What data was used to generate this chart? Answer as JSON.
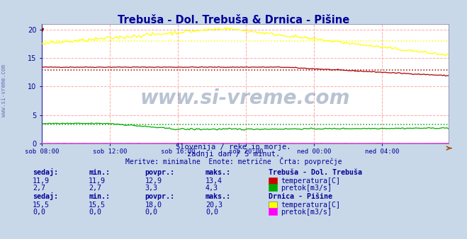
{
  "title": "Trebuša - Dol. Trebuša & Drnica - Pišine",
  "title_color": "#000099",
  "bg_color": "#c8d8e8",
  "plot_bg_color": "#ffffff",
  "grid_color": "#ffaaaa",
  "grid_linestyle": "--",
  "xlabel_ticks": [
    "sob 08:00",
    "sob 12:00",
    "sob 16:00",
    "sob 20:00",
    "ned 00:00",
    "ned 04:00"
  ],
  "tick_positions": [
    0,
    48,
    96,
    144,
    192,
    240
  ],
  "xlim": [
    0,
    287
  ],
  "ylim": [
    0,
    21
  ],
  "yticks": [
    0,
    5,
    10,
    15,
    20
  ],
  "subtitle1": "Slovenija / reke in morje.",
  "subtitle2": "zadnji dan / 5 minut.",
  "subtitle3": "Meritve: minimalne  Enote: metrične  Črta: povprečje",
  "subtitle_color": "#000099",
  "watermark": "www.si-vreme.com",
  "watermark_color": "#1a3a6a",
  "watermark_alpha": 0.3,
  "legend_title1": "Trebuša - Dol. Trebuša",
  "legend_title2": "Drnica - Pišine",
  "legend_color": "#000099",
  "col_headers": [
    "sedaj:",
    "min.:",
    "povpr.:",
    "maks.:"
  ],
  "row1_vals": [
    "11,9",
    "11,9",
    "12,9",
    "13,4"
  ],
  "row1_label": "temperatura[C]",
  "row1_color": "#cc0000",
  "row2_vals": [
    "2,7",
    "2,7",
    "3,3",
    "4,3"
  ],
  "row2_label": "pretok[m3/s]",
  "row2_color": "#00aa00",
  "row3_vals": [
    "15,5",
    "15,5",
    "18,0",
    "20,3"
  ],
  "row3_label": "temperatura[C]",
  "row3_color": "#ffff00",
  "row4_vals": [
    "0,0",
    "0,0",
    "0,0",
    "0,0"
  ],
  "row4_label": "pretok[m3/s]",
  "row4_color": "#ff00ff",
  "avg_trebusa_temp": 12.9,
  "avg_trebusa_pretok": 3.3,
  "avg_drnica_temp": 18.0,
  "trebusa_temp_color": "#aa0000",
  "trebusa_pretok_color": "#00aa00",
  "drnica_temp_color": "#ffff00",
  "drnica_pretok_color": "#ff00ff",
  "axis_left_color": "#4444aa",
  "arrow_color": "#aa4400",
  "side_label_color": "#4444aa",
  "side_label_alpha": 0.7
}
